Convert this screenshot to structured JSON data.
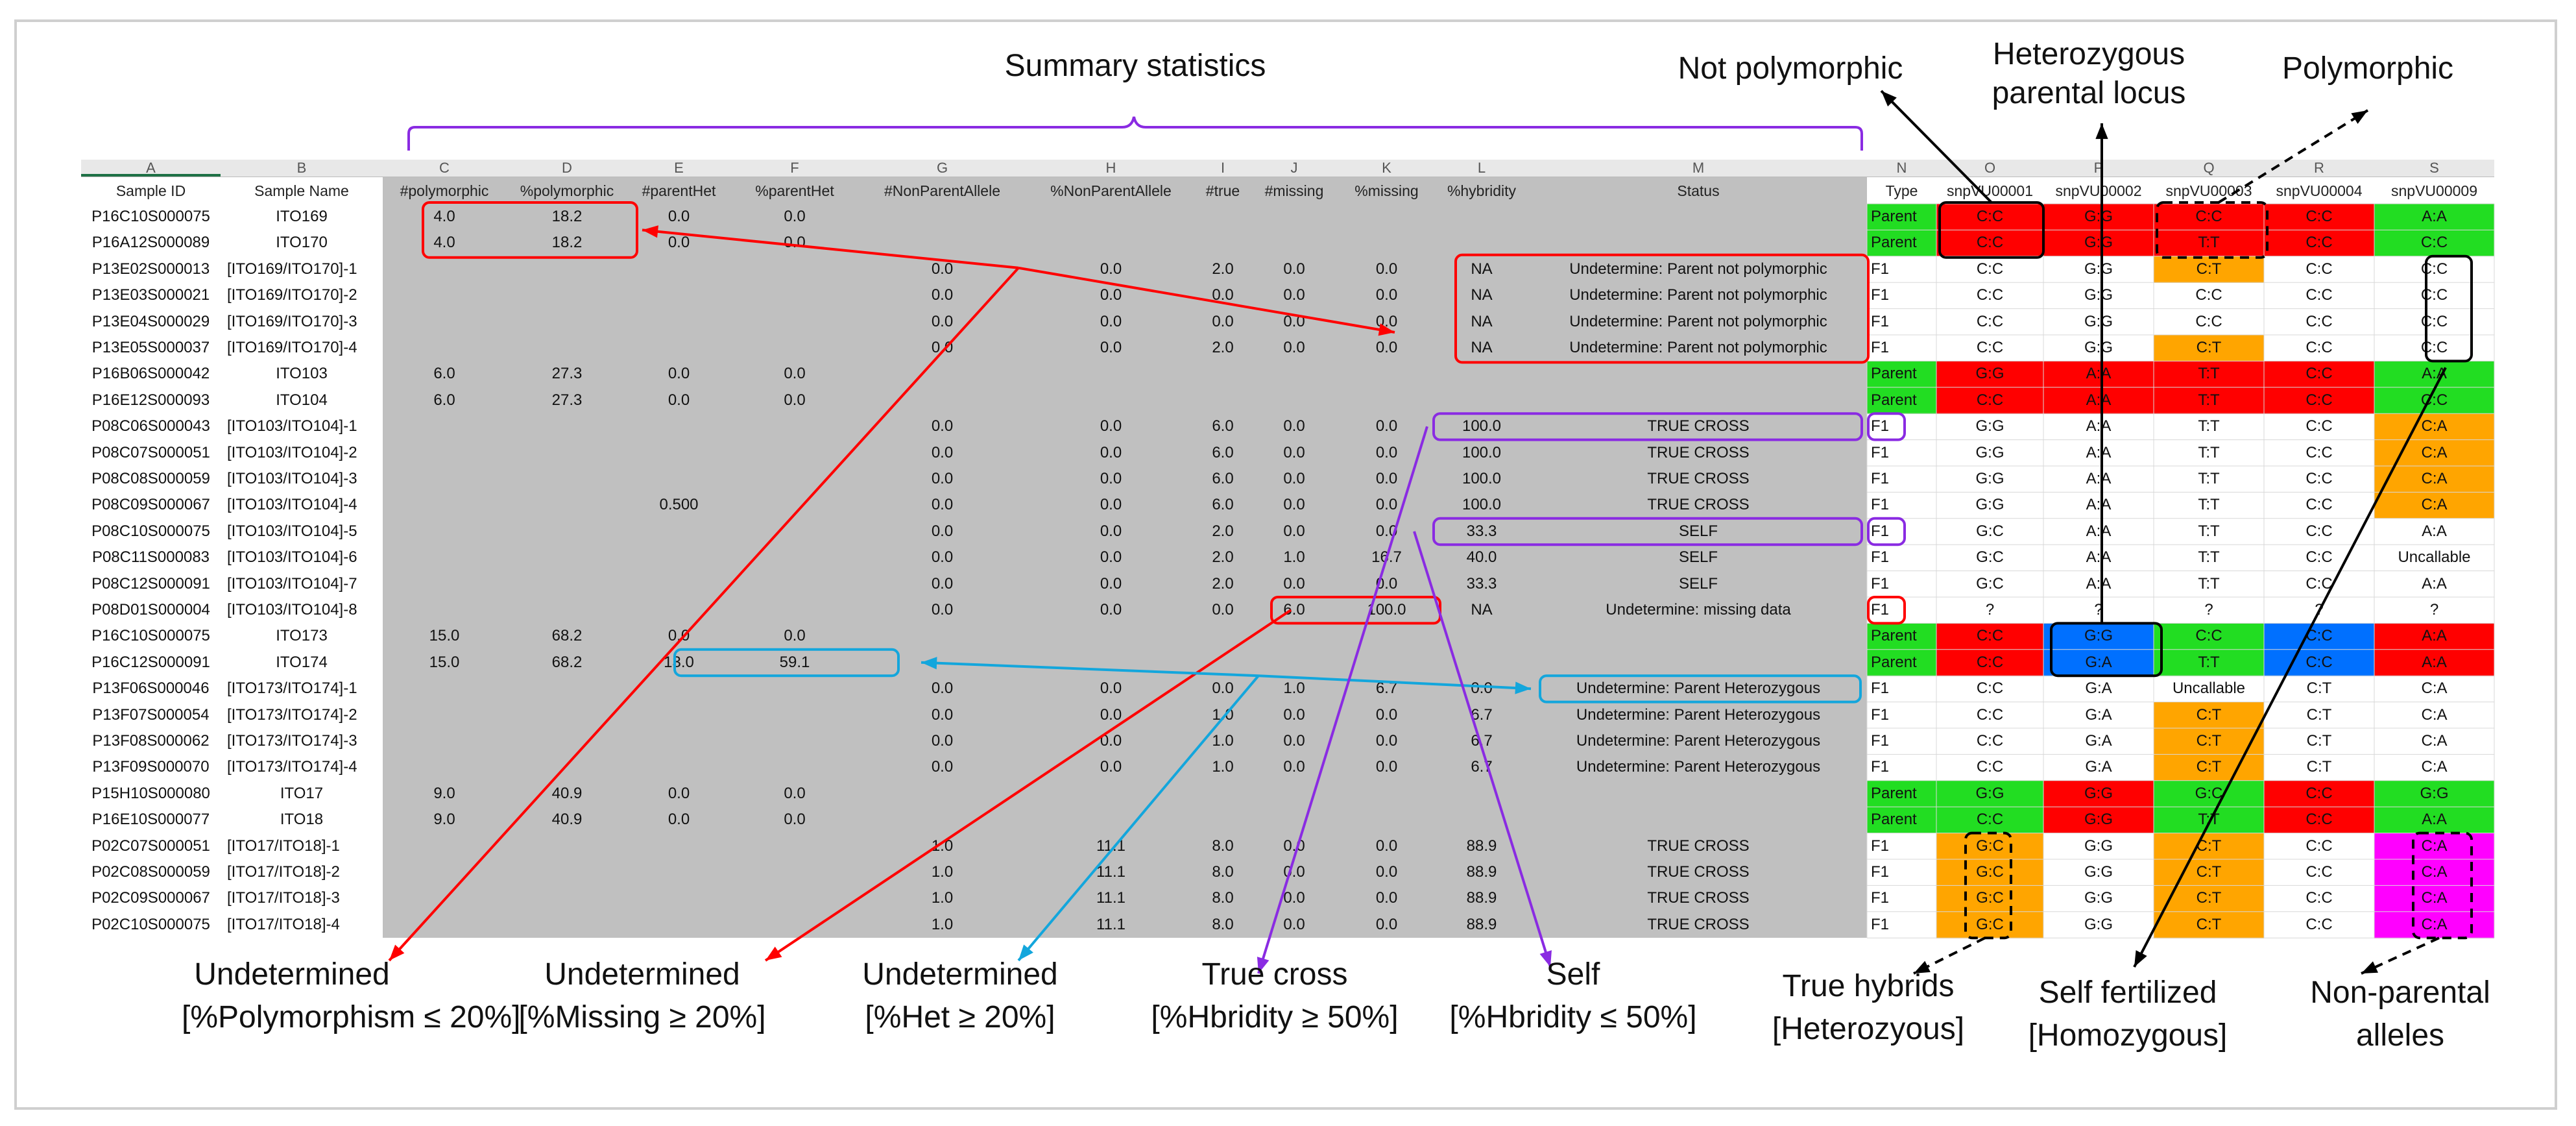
{
  "colors": {
    "red": "#ff0000",
    "green": "#22dd22",
    "orange": "#ffa500",
    "blue": "#0070ff",
    "magenta": "#ff00ff",
    "gray": "#c0c0c0",
    "purple": "#8a2be2",
    "cyan": "#13a6dc"
  },
  "top_labels": {
    "summary": "Summary statistics",
    "not_poly": "Not polymorphic",
    "het_parent": [
      "Heterozygous",
      "parental locus"
    ],
    "poly": "Polymorphic"
  },
  "col_letters": [
    "A",
    "B",
    "C",
    "D",
    "E",
    "F",
    "G",
    "H",
    "I",
    "J",
    "K",
    "L",
    "M",
    "N",
    "O",
    "P",
    "Q",
    "R",
    "S"
  ],
  "headers": [
    "Sample ID",
    "Sample Name",
    "#polymorphic",
    "%polymorphic",
    "#parentHet",
    "%parentHet",
    "#NonParentAllele",
    "%NonParentAllele",
    "#true",
    "#missing",
    "%missing",
    "%hybridity",
    "Status",
    "Type",
    "snpVU00001",
    "snpVU00002",
    "snpVU00003",
    "snpVU00004",
    "snpVU00009"
  ],
  "rows": [
    [
      "P16C10S000075",
      "ITO169",
      "4.0",
      "18.2",
      "0.0",
      "0.0",
      "",
      "",
      "",
      "",
      "",
      "",
      "",
      "Parent",
      "C:C",
      "G:G",
      "C:C",
      "C:C",
      "A:A"
    ],
    [
      "P16A12S000089",
      "ITO170",
      "4.0",
      "18.2",
      "0.0",
      "0.0",
      "",
      "",
      "",
      "",
      "",
      "",
      "",
      "Parent",
      "C:C",
      "G:G",
      "T:T",
      "C:C",
      "C:C"
    ],
    [
      "P13E02S000013",
      "[ITO169/ITO170]-1",
      "",
      "",
      "",
      "",
      "0.0",
      "0.0",
      "2.0",
      "0.0",
      "0.0",
      "NA",
      "Undetermine: Parent not polymorphic",
      "F1",
      "C:C",
      "G:G",
      "C:T",
      "C:C",
      "C:C"
    ],
    [
      "P13E03S000021",
      "[ITO169/ITO170]-2",
      "",
      "",
      "",
      "",
      "0.0",
      "0.0",
      "0.0",
      "0.0",
      "0.0",
      "NA",
      "Undetermine: Parent not polymorphic",
      "F1",
      "C:C",
      "G:G",
      "C:C",
      "C:C",
      "C:C"
    ],
    [
      "P13E04S000029",
      "[ITO169/ITO170]-3",
      "",
      "",
      "",
      "",
      "0.0",
      "0.0",
      "0.0",
      "0.0",
      "0.0",
      "NA",
      "Undetermine: Parent not polymorphic",
      "F1",
      "C:C",
      "G:G",
      "C:C",
      "C:C",
      "C:C"
    ],
    [
      "P13E05S000037",
      "[ITO169/ITO170]-4",
      "",
      "",
      "",
      "",
      "0.0",
      "0.0",
      "2.0",
      "0.0",
      "0.0",
      "NA",
      "Undetermine: Parent not polymorphic",
      "F1",
      "C:C",
      "G:G",
      "C:T",
      "C:C",
      "C:C"
    ],
    [
      "P16B06S000042",
      "ITO103",
      "6.0",
      "27.3",
      "0.0",
      "0.0",
      "",
      "",
      "",
      "",
      "",
      "",
      "",
      "Parent",
      "G:G",
      "A:A",
      "T:T",
      "C:C",
      "A:A"
    ],
    [
      "P16E12S000093",
      "ITO104",
      "6.0",
      "27.3",
      "0.0",
      "0.0",
      "",
      "",
      "",
      "",
      "",
      "",
      "",
      "Parent",
      "C:C",
      "A:A",
      "T:T",
      "C:C",
      "C:C"
    ],
    [
      "P08C06S000043",
      "[ITO103/ITO104]-1",
      "",
      "",
      "",
      "",
      "0.0",
      "0.0",
      "6.0",
      "0.0",
      "0.0",
      "100.0",
      "TRUE CROSS",
      "F1",
      "G:G",
      "A:A",
      "T:T",
      "C:C",
      "C:A"
    ],
    [
      "P08C07S000051",
      "[ITO103/ITO104]-2",
      "",
      "",
      "",
      "",
      "0.0",
      "0.0",
      "6.0",
      "0.0",
      "0.0",
      "100.0",
      "TRUE CROSS",
      "F1",
      "G:G",
      "A:A",
      "T:T",
      "C:C",
      "C:A"
    ],
    [
      "P08C08S000059",
      "[ITO103/ITO104]-3",
      "",
      "",
      "",
      "",
      "0.0",
      "0.0",
      "6.0",
      "0.0",
      "0.0",
      "100.0",
      "TRUE CROSS",
      "F1",
      "G:G",
      "A:A",
      "T:T",
      "C:C",
      "C:A"
    ],
    [
      "P08C09S000067",
      "[ITO103/ITO104]-4",
      "",
      "",
      "0.500",
      "",
      "0.0",
      "0.0",
      "6.0",
      "0.0",
      "0.0",
      "100.0",
      "TRUE CROSS",
      "F1",
      "G:G",
      "A:A",
      "T:T",
      "C:C",
      "C:A"
    ],
    [
      "P08C10S000075",
      "[ITO103/ITO104]-5",
      "",
      "",
      "",
      "",
      "0.0",
      "0.0",
      "2.0",
      "0.0",
      "0.0",
      "33.3",
      "SELF",
      "F1",
      "G:C",
      "A:A",
      "T:T",
      "C:C",
      "A:A"
    ],
    [
      "P08C11S000083",
      "[ITO103/ITO104]-6",
      "",
      "",
      "",
      "",
      "0.0",
      "0.0",
      "2.0",
      "1.0",
      "16.7",
      "40.0",
      "SELF",
      "F1",
      "G:C",
      "A:A",
      "T:T",
      "C:C",
      "Uncallable"
    ],
    [
      "P08C12S000091",
      "[ITO103/ITO104]-7",
      "",
      "",
      "",
      "",
      "0.0",
      "0.0",
      "2.0",
      "0.0",
      "0.0",
      "33.3",
      "SELF",
      "F1",
      "G:C",
      "A:A",
      "T:T",
      "C:C",
      "A:A"
    ],
    [
      "P08D01S000004",
      "[ITO103/ITO104]-8",
      "",
      "",
      "",
      "",
      "0.0",
      "0.0",
      "0.0",
      "6.0",
      "100.0",
      "NA",
      "Undetermine: missing data",
      "F1",
      "?",
      "?",
      "?",
      "?",
      "?"
    ],
    [
      "P16C10S000075",
      "ITO173",
      "15.0",
      "68.2",
      "0.0",
      "0.0",
      "",
      "",
      "",
      "",
      "",
      "",
      "",
      "Parent",
      "C:C",
      "G:G",
      "C:C",
      "C:C",
      "A:A"
    ],
    [
      "P16C12S000091",
      "ITO174",
      "15.0",
      "68.2",
      "13.0",
      "59.1",
      "",
      "",
      "",
      "",
      "",
      "",
      "",
      "Parent",
      "C:C",
      "G:A",
      "T:T",
      "C:C",
      "A:A"
    ],
    [
      "P13F06S000046",
      "[ITO173/ITO174]-1",
      "",
      "",
      "",
      "",
      "0.0",
      "0.0",
      "0.0",
      "1.0",
      "6.7",
      "0.0",
      "Undetermine: Parent Heterozygous",
      "F1",
      "C:C",
      "G:A",
      "Uncallable",
      "C:T",
      "C:A"
    ],
    [
      "P13F07S000054",
      "[ITO173/ITO174]-2",
      "",
      "",
      "",
      "",
      "0.0",
      "0.0",
      "1.0",
      "0.0",
      "0.0",
      "6.7",
      "Undetermine: Parent Heterozygous",
      "F1",
      "C:C",
      "G:A",
      "C:T",
      "C:T",
      "C:A"
    ],
    [
      "P13F08S000062",
      "[ITO173/ITO174]-3",
      "",
      "",
      "",
      "",
      "0.0",
      "0.0",
      "1.0",
      "0.0",
      "0.0",
      "6.7",
      "Undetermine: Parent Heterozygous",
      "F1",
      "C:C",
      "G:A",
      "C:T",
      "C:T",
      "C:A"
    ],
    [
      "P13F09S000070",
      "[ITO173/ITO174]-4",
      "",
      "",
      "",
      "",
      "0.0",
      "0.0",
      "1.0",
      "0.0",
      "0.0",
      "6.7",
      "Undetermine: Parent Heterozygous",
      "F1",
      "C:C",
      "G:A",
      "C:T",
      "C:T",
      "C:A"
    ],
    [
      "P15H10S000080",
      "ITO17",
      "9.0",
      "40.9",
      "0.0",
      "0.0",
      "",
      "",
      "",
      "",
      "",
      "",
      "",
      "Parent",
      "G:G",
      "G:G",
      "G:C",
      "C:C",
      "G:G"
    ],
    [
      "P16E10S000077",
      "ITO18",
      "9.0",
      "40.9",
      "0.0",
      "0.0",
      "",
      "",
      "",
      "",
      "",
      "",
      "",
      "Parent",
      "C:C",
      "G:G",
      "T:T",
      "C:C",
      "A:A"
    ],
    [
      "P02C07S000051",
      "[ITO17/ITO18]-1",
      "",
      "",
      "",
      "",
      "1.0",
      "11.1",
      "8.0",
      "0.0",
      "0.0",
      "88.9",
      "TRUE CROSS",
      "F1",
      "G:C",
      "G:G",
      "C:T",
      "C:C",
      "C:A"
    ],
    [
      "P02C08S000059",
      "[ITO17/ITO18]-2",
      "",
      "",
      "",
      "",
      "1.0",
      "11.1",
      "8.0",
      "0.0",
      "0.0",
      "88.9",
      "TRUE CROSS",
      "F1",
      "G:C",
      "G:G",
      "C:T",
      "C:C",
      "C:A"
    ],
    [
      "P02C09S000067",
      "[ITO17/ITO18]-3",
      "",
      "",
      "",
      "",
      "1.0",
      "11.1",
      "8.0",
      "0.0",
      "0.0",
      "88.9",
      "TRUE CROSS",
      "F1",
      "G:C",
      "G:G",
      "C:T",
      "C:C",
      "C:A"
    ],
    [
      "P02C10S000075",
      "[ITO17/ITO18]-4",
      "",
      "",
      "",
      "",
      "1.0",
      "11.1",
      "8.0",
      "0.0",
      "0.0",
      "88.9",
      "TRUE CROSS",
      "F1",
      "G:C",
      "G:G",
      "C:T",
      "C:C",
      "C:A"
    ]
  ],
  "cell_colors": [
    [
      "green",
      "red",
      "red",
      "red",
      "red",
      "green"
    ],
    [
      "green",
      "red",
      "red",
      "red",
      "red",
      "green"
    ],
    [
      "",
      "",
      "",
      "orange",
      "",
      ""
    ],
    [
      "",
      "",
      "",
      "",
      "",
      ""
    ],
    [
      "",
      "",
      "",
      "",
      "",
      ""
    ],
    [
      "",
      "",
      "",
      "orange",
      "",
      ""
    ],
    [
      "green",
      "red",
      "red",
      "red",
      "red",
      "green"
    ],
    [
      "green",
      "red",
      "red",
      "red",
      "red",
      "green"
    ],
    [
      "",
      "",
      "",
      "",
      "",
      "orange"
    ],
    [
      "",
      "",
      "",
      "",
      "",
      "orange"
    ],
    [
      "",
      "",
      "",
      "",
      "",
      "orange"
    ],
    [
      "",
      "",
      "",
      "",
      "",
      "orange"
    ],
    [
      "",
      "",
      "",
      "",
      "",
      ""
    ],
    [
      "",
      "",
      "",
      "",
      "",
      ""
    ],
    [
      "",
      "",
      "",
      "",
      "",
      ""
    ],
    [
      "",
      "",
      "",
      "",
      "",
      ""
    ],
    [
      "green",
      "red",
      "blue",
      "green",
      "blue",
      "red"
    ],
    [
      "green",
      "red",
      "blue",
      "green",
      "blue",
      "red"
    ],
    [
      "",
      "",
      "",
      "",
      "",
      ""
    ],
    [
      "",
      "",
      "",
      "orange",
      "",
      ""
    ],
    [
      "",
      "",
      "",
      "orange",
      "",
      ""
    ],
    [
      "",
      "",
      "",
      "orange",
      "",
      ""
    ],
    [
      "green",
      "green",
      "red",
      "green",
      "red",
      "green"
    ],
    [
      "green",
      "green",
      "red",
      "green",
      "red",
      "green"
    ],
    [
      "",
      "orange",
      "",
      "orange",
      "",
      "magenta"
    ],
    [
      "",
      "orange",
      "",
      "orange",
      "",
      "magenta"
    ],
    [
      "",
      "orange",
      "",
      "orange",
      "",
      "magenta"
    ],
    [
      "",
      "orange",
      "",
      "orange",
      "",
      "magenta"
    ]
  ],
  "bottom_labels": [
    [
      "Undetermined",
      "[%Polymorphism ≤ 20%]"
    ],
    [
      "Undetermined",
      "[%Missing ≥ 20%]"
    ],
    [
      "Undetermined",
      "[%Het ≥ 20%]"
    ],
    [
      "True cross",
      "[%Hbridity ≥ 50%]"
    ],
    [
      "Self",
      "[%Hbridity ≤ 50%]"
    ],
    [
      "True hybrids",
      "[Heterozyous]"
    ],
    [
      "Self fertilized",
      "[Homozygous]"
    ],
    [
      "Non-parental",
      "alleles"
    ]
  ]
}
